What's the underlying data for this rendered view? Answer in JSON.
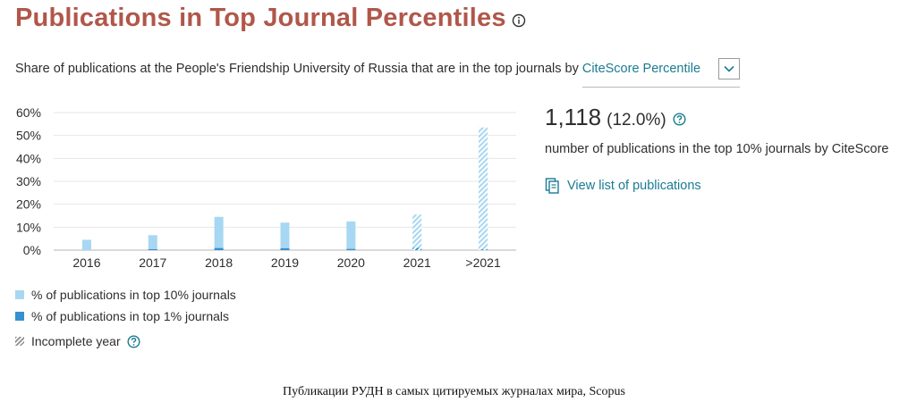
{
  "header": {
    "title": "Publications in Top Journal Percentiles",
    "info_icon": "info-circle-icon"
  },
  "subtitle": {
    "text": "Share of publications at the People's Friendship University of Russia that are in the top journals by",
    "select_value": "CiteScore Percentile",
    "select_icon": "chevron-down-icon"
  },
  "chart_data": {
    "type": "bar",
    "categories": [
      "2016",
      "2017",
      "2018",
      "2019",
      "2020",
      "2021",
      ">2021"
    ],
    "series": [
      {
        "name": "% of publications in top 10% journals",
        "values": [
          4.5,
          6.5,
          14.5,
          12.0,
          12.5,
          15.5,
          53.5
        ]
      },
      {
        "name": "% of publications in top 1% journals",
        "values": [
          0.0,
          0.4,
          0.9,
          0.8,
          0.5,
          1.0,
          0.3
        ]
      }
    ],
    "incomplete_categories": [
      "2021",
      ">2021"
    ],
    "ylim": [
      0,
      60
    ],
    "yticks": [
      0,
      10,
      20,
      30,
      40,
      50,
      60
    ],
    "ytick_labels": [
      "0%",
      "10%",
      "20%",
      "30%",
      "40%",
      "50%",
      "60%"
    ],
    "grid": true,
    "colors": {
      "top10": "#a7d7f2",
      "top1": "#3591cf",
      "grid": "#e6e6e6",
      "axis": "#b5b5b5"
    }
  },
  "legend": {
    "top10_label": "% of publications in top 10% journals",
    "top1_label": "% of publications in top 1% journals",
    "incomplete_label": "Incomplete year",
    "help_icon": "question-circle-icon"
  },
  "stats": {
    "count": "1,118",
    "percent": "(12.0%)",
    "help_icon": "question-circle-icon",
    "description": "number of publications in the top 10% journals by CiteScore",
    "view_link": "View list of publications",
    "view_icon": "document-list-icon"
  },
  "caption": "Публикации РУДН в самых цитируемых журналах мира, Scopus",
  "colors": {
    "title": "#b0574a",
    "link": "#1a7b92",
    "text": "#2e2e2e"
  }
}
